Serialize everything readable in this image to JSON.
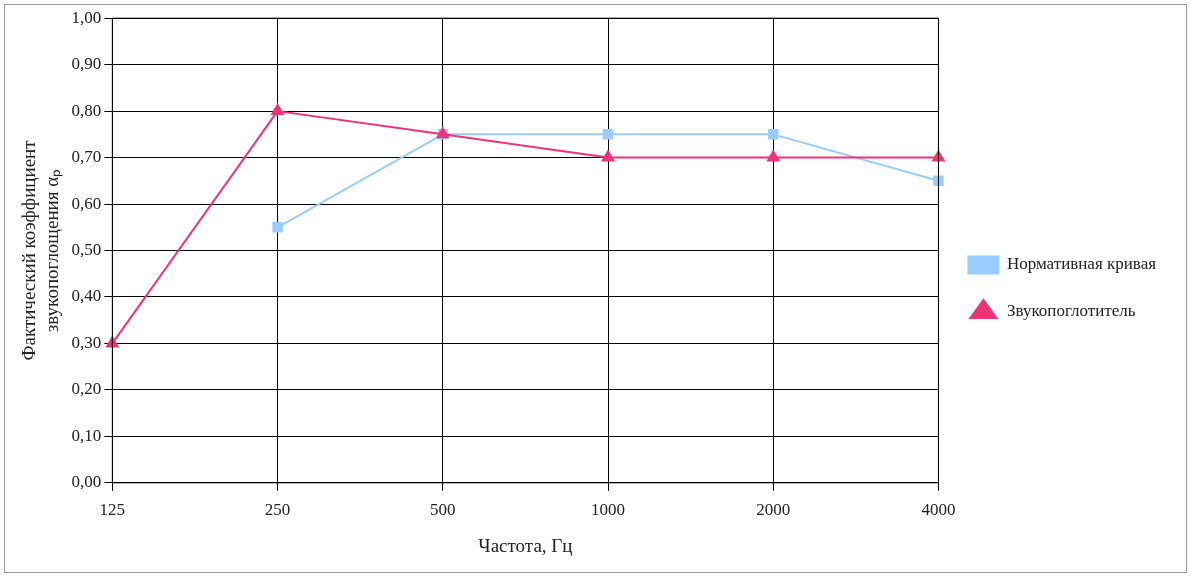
{
  "chart_data": {
    "type": "line",
    "xlabel": "Частота, Гц",
    "ylabel": [
      "Фактический коэффициент",
      "звукопоглощения αₚ"
    ],
    "categories": [
      "125",
      "250",
      "500",
      "1000",
      "2000",
      "4000"
    ],
    "series": [
      {
        "name": "Нормативная кривая",
        "color": "#99ccff",
        "marker": "square",
        "values": [
          null,
          0.55,
          0.75,
          0.75,
          0.75,
          0.65
        ]
      },
      {
        "name": "Звукопоглотитель",
        "color": "#ee3377",
        "marker": "triangle",
        "values": [
          0.3,
          0.8,
          0.75,
          0.7,
          0.7,
          0.7
        ]
      }
    ],
    "ylim": [
      0,
      1
    ],
    "yticks": [
      {
        "value": 0,
        "label": "0,00"
      },
      {
        "value": 0.1,
        "label": "0,10"
      },
      {
        "value": 0.2,
        "label": "0,20"
      },
      {
        "value": 0.3,
        "label": "0,30"
      },
      {
        "value": 0.4,
        "label": "0,40"
      },
      {
        "value": 0.5,
        "label": "0,50"
      },
      {
        "value": 0.6,
        "label": "0,60"
      },
      {
        "value": 0.7,
        "label": "0,70"
      },
      {
        "value": 0.8,
        "label": "0,80"
      },
      {
        "value": 0.9,
        "label": "0,90"
      },
      {
        "value": 1,
        "label": "1,00"
      }
    ],
    "grid": true,
    "legend": "right",
    "line_style": "solid"
  }
}
